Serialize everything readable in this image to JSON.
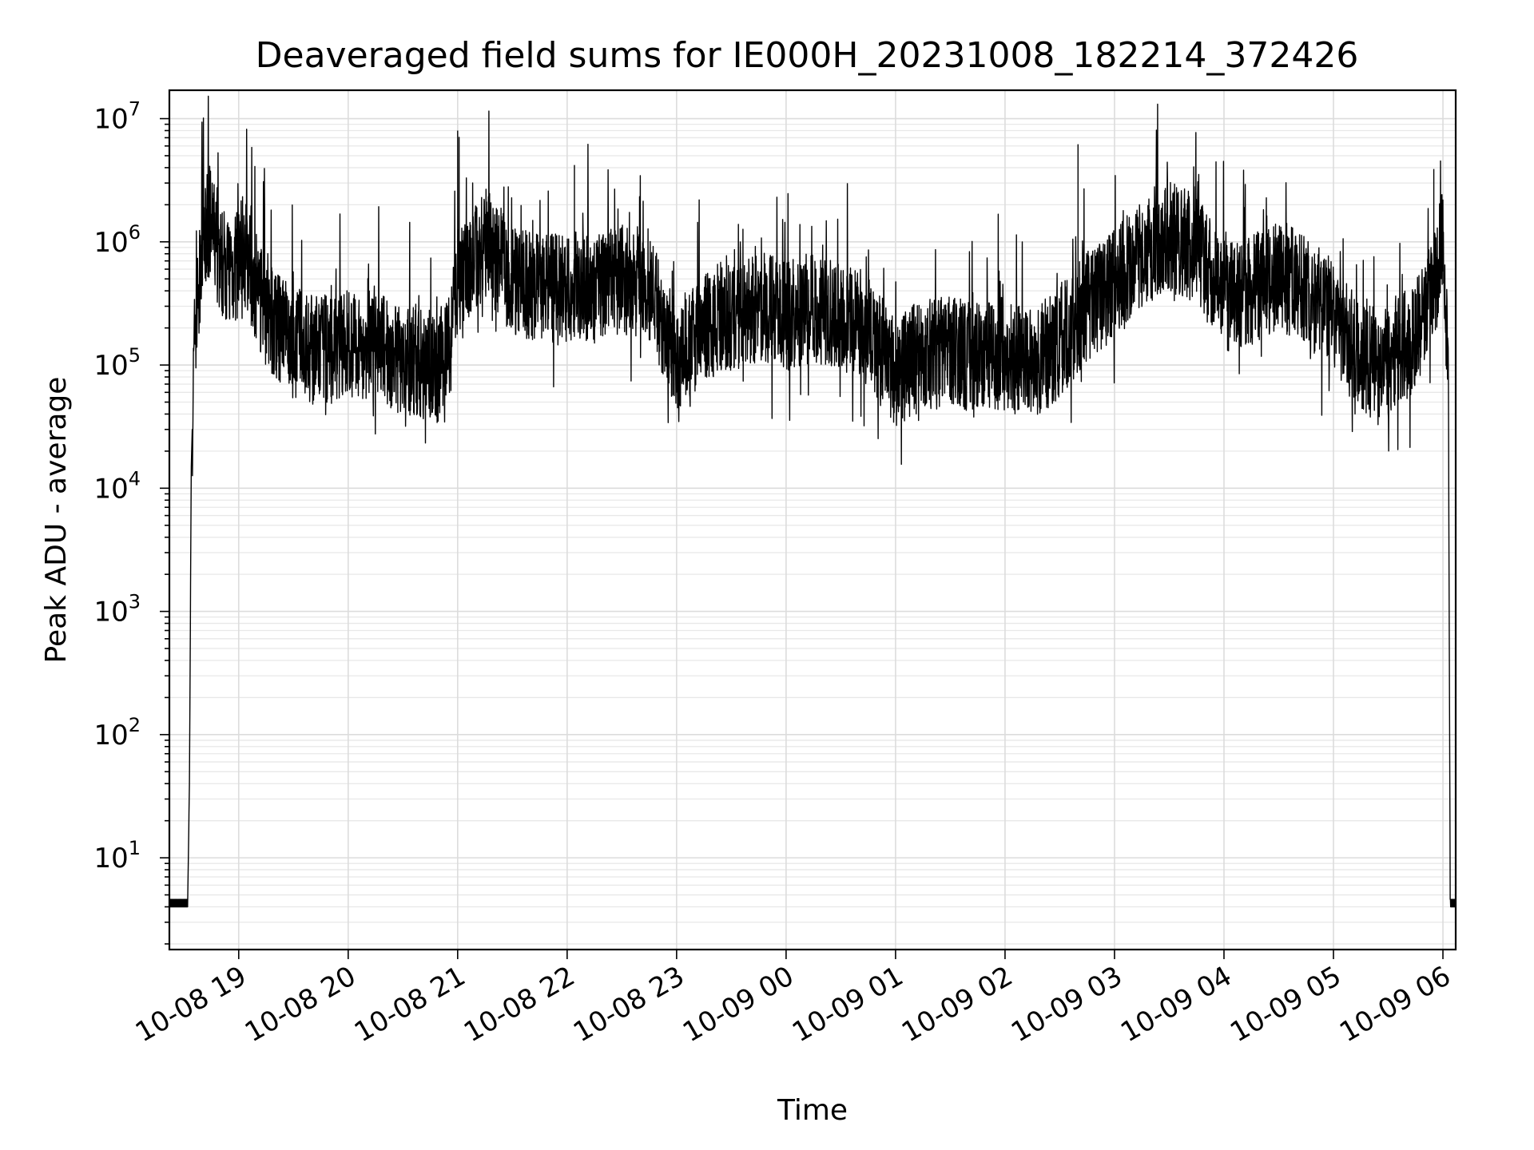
{
  "chart_data": {
    "type": "line",
    "title": "Deaveraged field sums for IE000H_20231008_182214_372426",
    "xlabel": "Time",
    "ylabel": "Peak ADU - average",
    "yscale": "log",
    "ylim": [
      1.8,
      17000000
    ],
    "xlim": [
      "2023-10-08 18:22",
      "2023-10-09 06:07"
    ],
    "grid": true,
    "x_ticks": [
      "10-08 19",
      "10-08 20",
      "10-08 21",
      "10-08 22",
      "10-08 23",
      "10-09 00",
      "10-09 01",
      "10-09 02",
      "10-09 03",
      "10-09 04",
      "10-09 05",
      "10-09 06"
    ],
    "y_ticks": [
      {
        "base": "10",
        "exp": "1"
      },
      {
        "base": "10",
        "exp": "2"
      },
      {
        "base": "10",
        "exp": "3"
      },
      {
        "base": "10",
        "exp": "4"
      },
      {
        "base": "10",
        "exp": "5"
      },
      {
        "base": "10",
        "exp": "6"
      },
      {
        "base": "10",
        "exp": "7"
      }
    ],
    "series": [
      {
        "color": "#000000",
        "x": [
          "2023-10-08 18:22",
          "2023-10-08 18:32",
          "2023-10-08 18:33",
          "2023-10-08 18:34",
          "2023-10-08 18:36",
          "2023-10-08 18:40",
          "2023-10-08 18:44",
          "2023-10-08 18:50",
          "2023-10-08 18:58",
          "2023-10-08 19:05",
          "2023-10-08 19:15",
          "2023-10-08 19:30",
          "2023-10-08 19:45",
          "2023-10-08 20:00",
          "2023-10-08 20:15",
          "2023-10-08 20:30",
          "2023-10-08 20:45",
          "2023-10-08 20:55",
          "2023-10-08 21:00",
          "2023-10-08 21:15",
          "2023-10-08 21:30",
          "2023-10-08 21:45",
          "2023-10-08 22:00",
          "2023-10-08 22:15",
          "2023-10-08 22:30",
          "2023-10-08 22:45",
          "2023-10-08 23:00",
          "2023-10-08 23:15",
          "2023-10-08 23:30",
          "2023-10-08 23:45",
          "2023-10-09 00:00",
          "2023-10-09 00:15",
          "2023-10-09 00:30",
          "2023-10-09 00:45",
          "2023-10-09 01:00",
          "2023-10-09 01:15",
          "2023-10-09 01:30",
          "2023-10-09 01:45",
          "2023-10-09 02:00",
          "2023-10-09 02:15",
          "2023-10-09 02:30",
          "2023-10-09 02:45",
          "2023-10-09 03:00",
          "2023-10-09 03:15",
          "2023-10-09 03:30",
          "2023-10-09 03:45",
          "2023-10-09 04:00",
          "2023-10-09 04:15",
          "2023-10-09 04:30",
          "2023-10-09 04:45",
          "2023-10-09 05:00",
          "2023-10-09 05:15",
          "2023-10-09 05:30",
          "2023-10-09 05:45",
          "2023-10-09 05:56",
          "2023-10-09 06:00",
          "2023-10-09 06:03",
          "2023-10-09 06:04",
          "2023-10-09 06:07"
        ],
        "y": [
          4,
          4,
          40,
          15000,
          200000,
          700000,
          1500000,
          700000,
          600000,
          700000,
          250000,
          150000,
          130000,
          150000,
          140000,
          110000,
          100000,
          120000,
          500000,
          1000000,
          500000,
          400000,
          450000,
          400000,
          500000,
          450000,
          120000,
          200000,
          250000,
          300000,
          250000,
          300000,
          250000,
          180000,
          90000,
          120000,
          130000,
          120000,
          120000,
          100000,
          150000,
          300000,
          450000,
          800000,
          1100000,
          900000,
          350000,
          400000,
          550000,
          400000,
          250000,
          110000,
          100000,
          180000,
          500000,
          1000000,
          70000,
          4,
          4
        ]
      }
    ]
  }
}
